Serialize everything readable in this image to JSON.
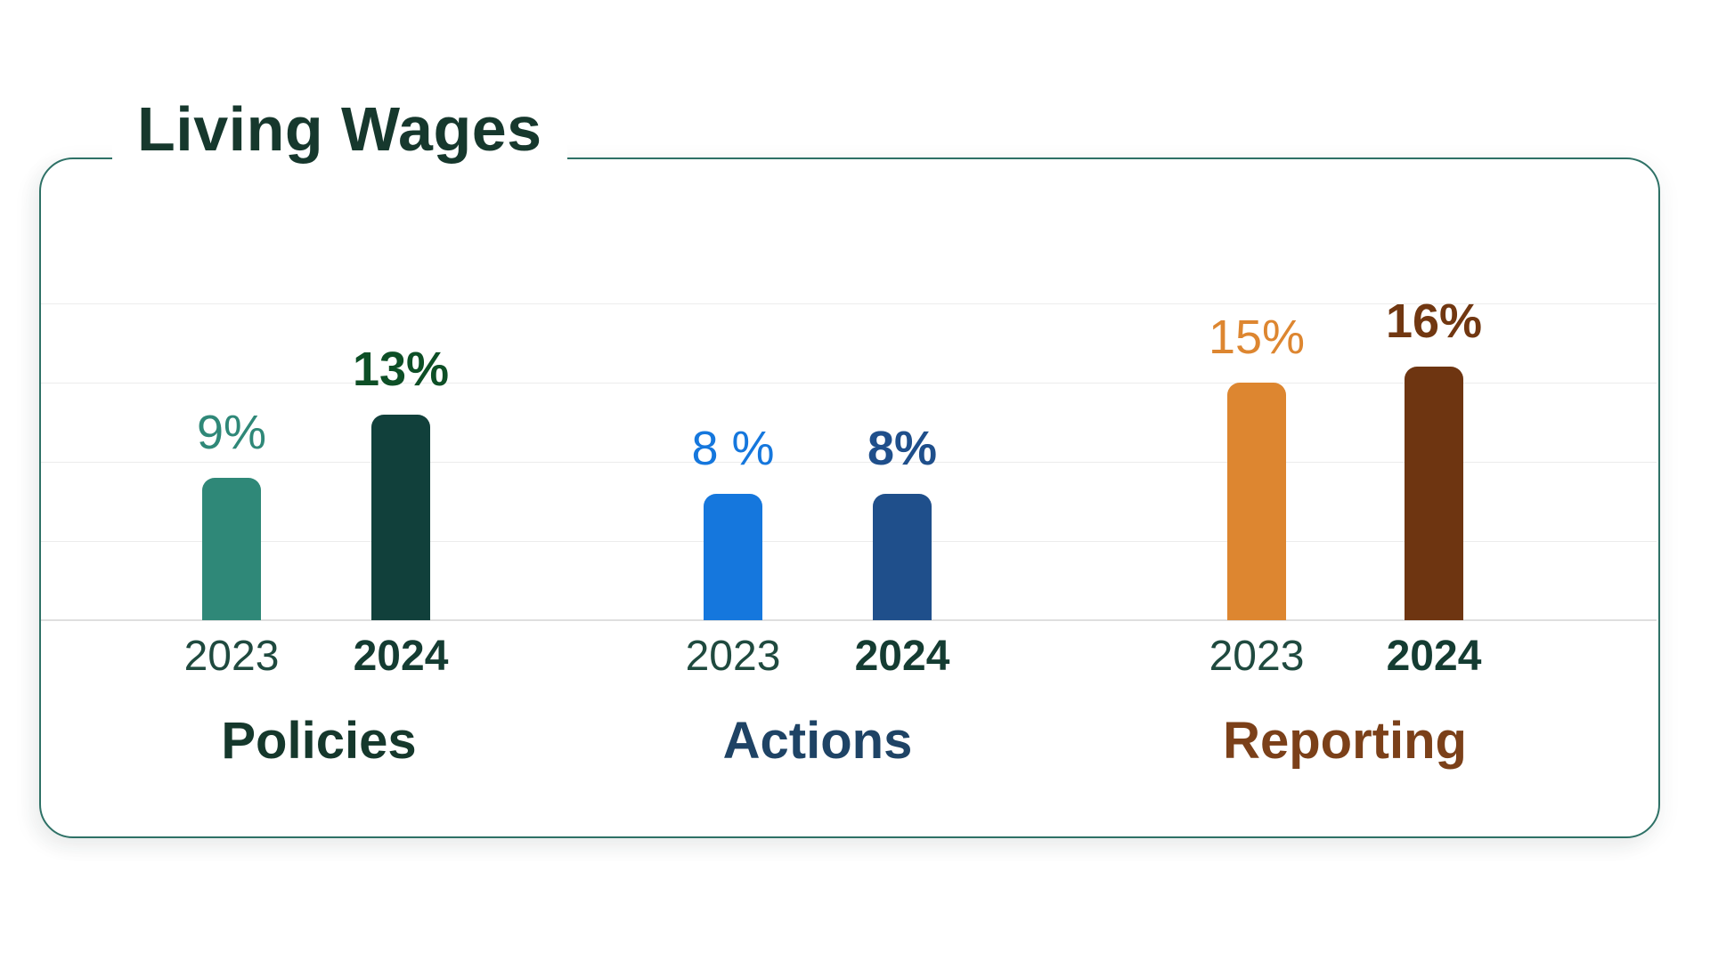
{
  "title": "Living Wages",
  "colors": {
    "border": "#2e7166",
    "title_color": "#16382d",
    "gridline": "#ececec",
    "baseline": "#dfdfdf",
    "background": "#ffffff"
  },
  "chart_data": {
    "type": "bar",
    "title": "Living Wages",
    "unit": "%",
    "ylim": [
      0,
      20
    ],
    "grid": true,
    "grid_step": 5,
    "y_axis_tick_labels_visible": false,
    "legend_position": "none",
    "categories": [
      "Policies",
      "Actions",
      "Reporting"
    ],
    "series_years": [
      "2023",
      "2024"
    ],
    "groups": [
      {
        "label": "Policies",
        "label_color": "#15382c",
        "bars": [
          {
            "year": "2023",
            "value": 9,
            "value_label": "9%",
            "bar_color": "#2f8878",
            "value_color": "#2f8878",
            "year_color": "#1f4a3f",
            "year_weight": 400,
            "value_weight": 400
          },
          {
            "year": "2024",
            "value": 13,
            "value_label": "13%",
            "bar_color": "#11403b",
            "value_color": "#0d4f26",
            "year_color": "#143c32",
            "year_weight": 700,
            "value_weight": 600
          }
        ]
      },
      {
        "label": "Actions",
        "label_color": "#1e4365",
        "bars": [
          {
            "year": "2023",
            "value": 8,
            "value_label": "8 %",
            "bar_color": "#1577dd",
            "value_color": "#1577dd",
            "year_color": "#1f4a3f",
            "year_weight": 400,
            "value_weight": 400
          },
          {
            "year": "2024",
            "value": 8,
            "value_label": "8%",
            "bar_color": "#1f4f8b",
            "value_color": "#1f4f8b",
            "year_color": "#143c32",
            "year_weight": 700,
            "value_weight": 600
          }
        ]
      },
      {
        "label": "Reporting",
        "label_color": "#7b4019",
        "bars": [
          {
            "year": "2023",
            "value": 15,
            "value_label": "15%",
            "bar_color": "#dd8630",
            "value_color": "#dd8630",
            "year_color": "#1f4a3f",
            "year_weight": 400,
            "value_weight": 400
          },
          {
            "year": "2024",
            "value": 16,
            "value_label": "16%",
            "bar_color": "#6e3511",
            "value_color": "#713711",
            "year_color": "#143c32",
            "year_weight": 700,
            "value_weight": 600
          }
        ]
      }
    ]
  }
}
